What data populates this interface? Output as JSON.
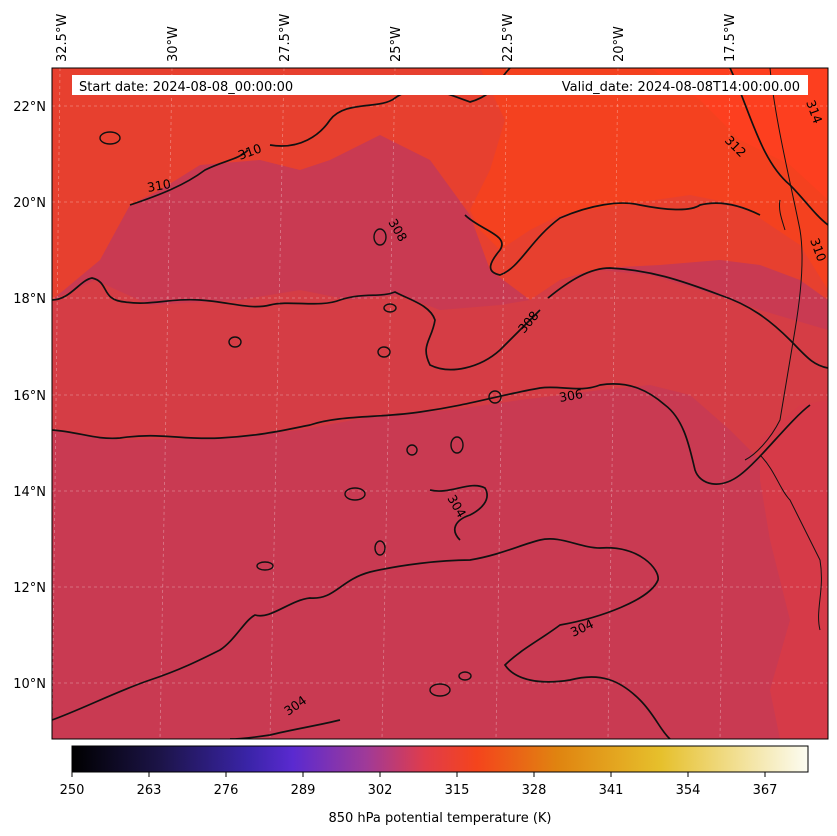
{
  "banner": {
    "start": "Start date: 2024-08-08_00:00:00",
    "valid": "Valid_date: 2024-08-08T14:00:00.00"
  },
  "lon_labels": [
    "32.5°W",
    "30°W",
    "27.5°W",
    "25°W",
    "22.5°W",
    "20°W",
    "17.5°W"
  ],
  "lat_labels": [
    "22°N",
    "20°N",
    "18°N",
    "16°N",
    "14°N",
    "12°N",
    "10°N"
  ],
  "contour_labels": [
    "310",
    "310",
    "308",
    "308",
    "306",
    "304",
    "304",
    "304",
    "312",
    "314",
    "310"
  ],
  "colorbar": {
    "ticks": [
      "250",
      "263",
      "276",
      "289",
      "302",
      "315",
      "328",
      "341",
      "354",
      "367"
    ],
    "label": "850 hPa potential temperature (K)",
    "colors": [
      "#000000",
      "#2a1a5e",
      "#5a2ad0",
      "#b23a8a",
      "#f0402a",
      "#e07a10",
      "#e6c830",
      "#fbfbe6"
    ]
  },
  "field_colors": {
    "cool": "#c93a52",
    "mid": "#dd3d3c",
    "warm": "#f2402e",
    "hot": "#ff3f22"
  }
}
